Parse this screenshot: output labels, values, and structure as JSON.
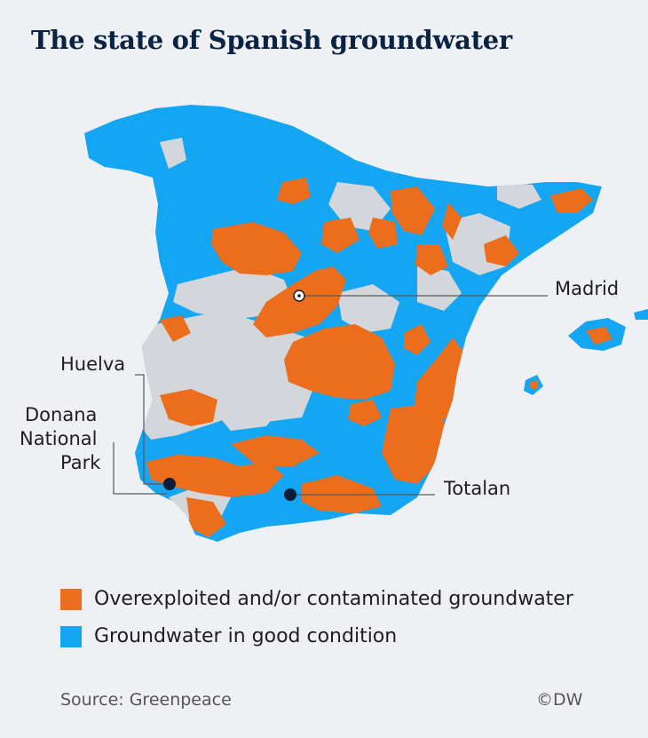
{
  "title": "The state of Spanish groundwater",
  "colors": {
    "bad": "#ec6d1c",
    "good": "#14a6f2",
    "neutral": "#d3d6db",
    "background": "#eef0f3",
    "title": "#0a2342",
    "marker": "#0b1d3a"
  },
  "map": {
    "places": {
      "madrid": "Madrid",
      "huelva": "Huelva",
      "donana_line1": "Donana",
      "donana_line2": "National",
      "donana_line3": "Park",
      "totalan": "Totalan"
    }
  },
  "legend": {
    "bad_label": "Overexploited and/or contaminated groundwater",
    "good_label": "Groundwater in good condition"
  },
  "footer": {
    "source": "Source: Greenpeace",
    "credit": "©DW"
  }
}
